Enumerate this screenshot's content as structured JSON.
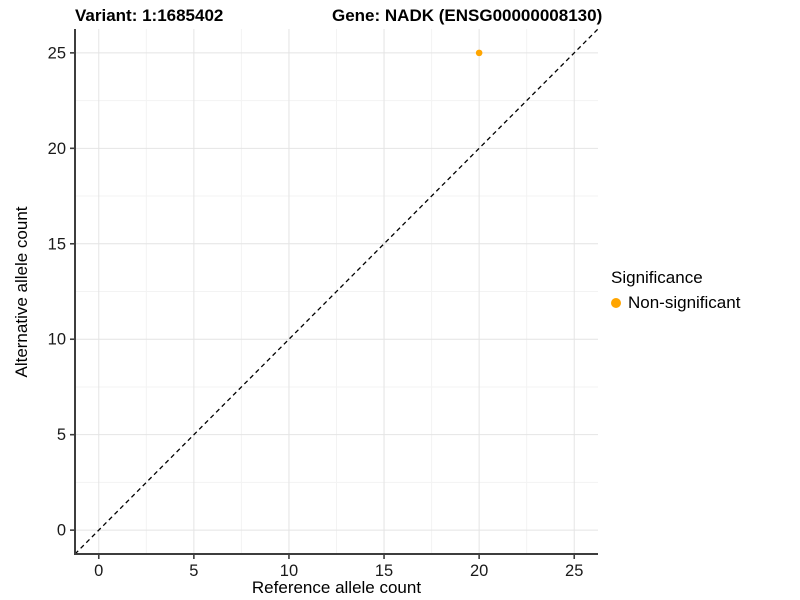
{
  "chart_data": {
    "type": "scatter",
    "title_variant": "Variant: 1:1685402",
    "title_gene": "Gene: NADK (ENSG00000008130)",
    "xlabel": "Reference allele count",
    "ylabel": "Alternative allele count",
    "xlim": [
      0,
      25
    ],
    "ylim": [
      0,
      25
    ],
    "x_ticks": [
      0,
      5,
      10,
      15,
      20,
      25
    ],
    "y_ticks": [
      0,
      5,
      10,
      15,
      20,
      25
    ],
    "minor_grid_step": 2.5,
    "axis_expansion": 1.25,
    "grid": "major+minor",
    "points": [
      {
        "x": 20,
        "y": 25,
        "series": "Non-significant"
      }
    ],
    "reference_line": {
      "kind": "identity",
      "linestyle": "dashed"
    },
    "legend": {
      "title": "Significance",
      "position": "right",
      "entries": [
        {
          "label": "Non-significant",
          "color": "#FFA500",
          "marker": "circle"
        }
      ]
    },
    "colors": {
      "background": "#FFFFFF",
      "point_nonsignificant": "#FFA500",
      "grid_major": "#E4E4E4",
      "grid_minor": "#F3F3F3",
      "axis_line": "#3D3D3D",
      "tick_text": "#1A1A1A",
      "reference_line": "#000000",
      "text": "#000000"
    }
  }
}
